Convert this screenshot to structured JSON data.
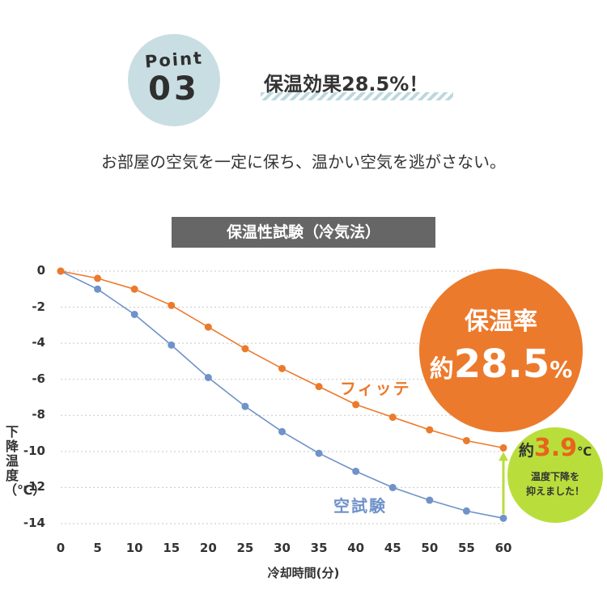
{
  "point_badge": {
    "word": "Point",
    "number": "03"
  },
  "headline": "保温効果28.5%！",
  "subtitle": "お部屋の空気を一定に保ち、温かい空気を逃がさない。",
  "colors": {
    "fitte": "#ec7a2c",
    "empty": "#6f92c9",
    "badge_bg": "#c9dee3",
    "title_bar": "#666666",
    "green": "#b9de3b"
  },
  "chart_data": {
    "type": "line",
    "title": "保温性試験（冷気法）",
    "xlabel": "冷却時間(分)",
    "ylabel": "下降温度（℃）",
    "x": [
      0,
      5,
      10,
      15,
      20,
      25,
      30,
      35,
      40,
      45,
      50,
      55,
      60
    ],
    "xticks": [
      "0",
      "5",
      "10",
      "15",
      "20",
      "25",
      "30",
      "35",
      "40",
      "45",
      "50",
      "55",
      "60"
    ],
    "yticks": [
      "0",
      "-2",
      "-4",
      "-6",
      "-8",
      "-10",
      "-12",
      "-14"
    ],
    "ylim": [
      -14,
      0
    ],
    "grid": "horizontal dotted",
    "series": [
      {
        "name": "フィッテ",
        "color": "#ec7a2c",
        "values": [
          0,
          -0.4,
          -1.0,
          -1.9,
          -3.1,
          -4.3,
          -5.4,
          -6.4,
          -7.4,
          -8.1,
          -8.8,
          -9.4,
          -9.8
        ]
      },
      {
        "name": "空試験",
        "color": "#6f92c9",
        "values": [
          0,
          -1.0,
          -2.4,
          -4.1,
          -5.9,
          -7.5,
          -8.9,
          -10.1,
          -11.1,
          -12.0,
          -12.7,
          -13.3,
          -13.7
        ]
      }
    ]
  },
  "callout_rate": {
    "title": "保温率",
    "prefix": "約",
    "value": "28.5",
    "unit": "%"
  },
  "callout_diff": {
    "prefix": "約",
    "value": "3.9",
    "unit": "℃",
    "line2": "温度下降を",
    "line3": "抑えました！"
  }
}
